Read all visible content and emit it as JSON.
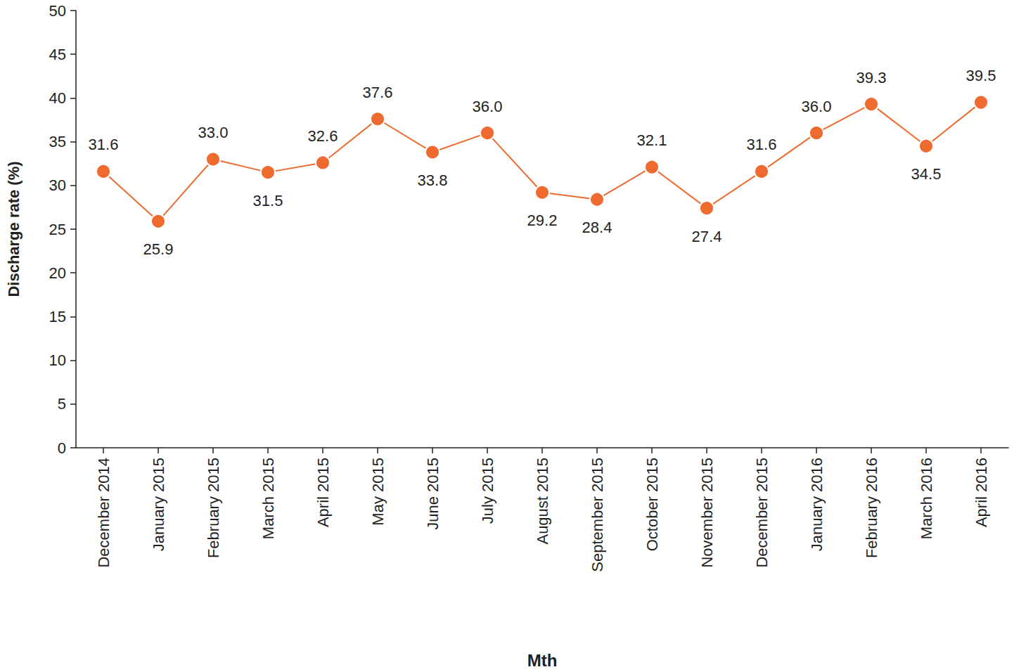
{
  "chart_data": {
    "type": "line",
    "x_label": "Mth",
    "y_label": "Discharge rate (%)",
    "categories": [
      "December 2014",
      "January 2015",
      "February 2015",
      "March 2015",
      "April 2015",
      "May 2015",
      "June 2015",
      "July 2015",
      "August 2015",
      "September 2015",
      "October 2015",
      "November 2015",
      "December 2015",
      "January 2016",
      "February 2016",
      "March 2016",
      "April 2016"
    ],
    "values": [
      31.6,
      25.9,
      33.0,
      31.5,
      32.6,
      37.6,
      33.8,
      36.0,
      29.2,
      28.4,
      32.1,
      27.4,
      31.6,
      36.0,
      39.3,
      34.5,
      39.5
    ],
    "value_labels": [
      "31.6",
      "25.9",
      "33.0",
      "31.5",
      "32.6",
      "37.6",
      "33.8",
      "36.0",
      "29.2",
      "28.4",
      "32.1",
      "27.4",
      "31.6",
      "36.0",
      "39.3",
      "34.5",
      "39.5"
    ],
    "color": "#ee6a2e",
    "marker": "circle",
    "line_style": "solid",
    "ylim": [
      0,
      50
    ],
    "yticks": [
      0,
      5,
      10,
      15,
      20,
      25,
      30,
      35,
      40,
      45,
      50
    ],
    "grid": false,
    "data_labels": true
  }
}
